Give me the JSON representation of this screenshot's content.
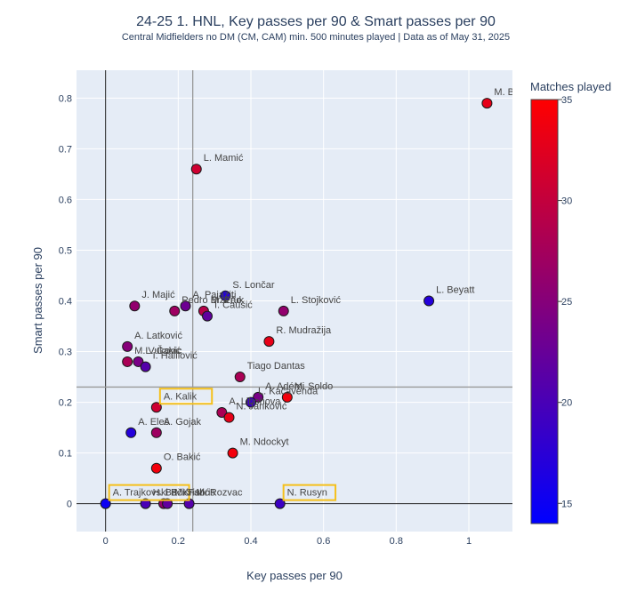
{
  "chart_data": {
    "type": "scatter",
    "title": "24-25 1. HNL, Key passes per 90 & Smart passes per 90",
    "subtitle": "Central Midfielders no DM (CM, CAM) min. 500 minutes played | Data as of May 31, 2025",
    "xlabel": "Key passes per 90",
    "ylabel": "Smart passes per 90",
    "xlim": [
      -0.08,
      1.12
    ],
    "ylim": [
      -0.055,
      0.855
    ],
    "xticks": [
      0,
      0.2,
      0.4,
      0.6,
      0.8,
      1
    ],
    "xtick_labels": [
      "0",
      "0.2",
      "0.4",
      "0.6",
      "0.8",
      "1"
    ],
    "yticks": [
      0,
      0.1,
      0.2,
      0.3,
      0.4,
      0.5,
      0.6,
      0.7,
      0.8
    ],
    "ytick_labels": [
      "0",
      "0.1",
      "0.2",
      "0.3",
      "0.4",
      "0.5",
      "0.6",
      "0.7",
      "0.8"
    ],
    "reference_lines": {
      "x_avg": 0.24,
      "y_avg": 0.23
    },
    "grid": true,
    "colorbar": {
      "title": "Matches played",
      "min": 14,
      "max": 35,
      "ticks": [
        15,
        20,
        25,
        30,
        35
      ],
      "tick_labels": [
        "15",
        "20",
        "25",
        "30",
        "35"
      ],
      "low_color": "#0000ff",
      "high_color": "#ff0000"
    },
    "marker_edge_color": "#1a1a1a",
    "highlight_color": "#f5c01b",
    "points": [
      {
        "name": "M. Ba",
        "x": 1.05,
        "y": 0.79,
        "matches": 33
      },
      {
        "name": "L. Mamić",
        "x": 0.25,
        "y": 0.66,
        "matches": 31
      },
      {
        "name": "L. Beyatt",
        "x": 0.89,
        "y": 0.4,
        "matches": 17
      },
      {
        "name": "S. Lončar",
        "x": 0.33,
        "y": 0.41,
        "matches": 17
      },
      {
        "name": "L. Stojković",
        "x": 0.49,
        "y": 0.38,
        "matches": 26
      },
      {
        "name": "J. Majić",
        "x": 0.08,
        "y": 0.39,
        "matches": 26
      },
      {
        "name": "A. Pajaziti",
        "x": 0.22,
        "y": 0.39,
        "matches": 23
      },
      {
        "name": "Pedro Brazão",
        "x": 0.19,
        "y": 0.38,
        "matches": 27
      },
      {
        "name": "M. Fruk",
        "x": 0.27,
        "y": 0.38,
        "matches": 29
      },
      {
        "name": "I. Ćaušić",
        "x": 0.28,
        "y": 0.37,
        "matches": 22
      },
      {
        "name": "R. Mudražija",
        "x": 0.45,
        "y": 0.32,
        "matches": 33
      },
      {
        "name": "A. Latković",
        "x": 0.06,
        "y": 0.31,
        "matches": 25
      },
      {
        "name": "M. Vukovic",
        "x": 0.06,
        "y": 0.28,
        "matches": 28
      },
      {
        "name": "L. Čakić",
        "x": 0.09,
        "y": 0.28,
        "matches": 24
      },
      {
        "name": "I. Halilović",
        "x": 0.11,
        "y": 0.27,
        "matches": 21
      },
      {
        "name": "Tiago Dantas",
        "x": 0.37,
        "y": 0.25,
        "matches": 28
      },
      {
        "name": "A. Adémi",
        "x": 0.42,
        "y": 0.21,
        "matches": 24
      },
      {
        "name": "L. Kačavenda",
        "x": 0.4,
        "y": 0.2,
        "matches": 19
      },
      {
        "name": "M. Soldo",
        "x": 0.5,
        "y": 0.21,
        "matches": 34
      },
      {
        "name": "A. Kalik",
        "x": 0.14,
        "y": 0.19,
        "matches": 31,
        "highlight": true
      },
      {
        "name": "A. Libohova",
        "x": 0.32,
        "y": 0.18,
        "matches": 28
      },
      {
        "name": "N. Janković",
        "x": 0.34,
        "y": 0.17,
        "matches": 33
      },
      {
        "name": "A. Eleš",
        "x": 0.07,
        "y": 0.14,
        "matches": 17
      },
      {
        "name": "A. Gojak",
        "x": 0.14,
        "y": 0.14,
        "matches": 27
      },
      {
        "name": "M. Ndockyt",
        "x": 0.35,
        "y": 0.1,
        "matches": 34
      },
      {
        "name": "O. Bakić",
        "x": 0.14,
        "y": 0.07,
        "matches": 34
      },
      {
        "name": "A. Trajkovski",
        "x": 0.0,
        "y": 0.0,
        "matches": 15,
        "highlight": true
      },
      {
        "name": "H. Bačić",
        "x": 0.11,
        "y": 0.0,
        "matches": 20
      },
      {
        "name": "B. Kristić",
        "x": 0.16,
        "y": 0.0,
        "matches": 26
      },
      {
        "name": "M. Fabris",
        "x": 0.17,
        "y": 0.0,
        "matches": 22
      },
      {
        "name": "M. Rozvac",
        "x": 0.23,
        "y": 0.0,
        "matches": 21
      },
      {
        "name": "N. Rusyn",
        "x": 0.48,
        "y": 0.0,
        "matches": 19,
        "highlight": true
      }
    ]
  }
}
